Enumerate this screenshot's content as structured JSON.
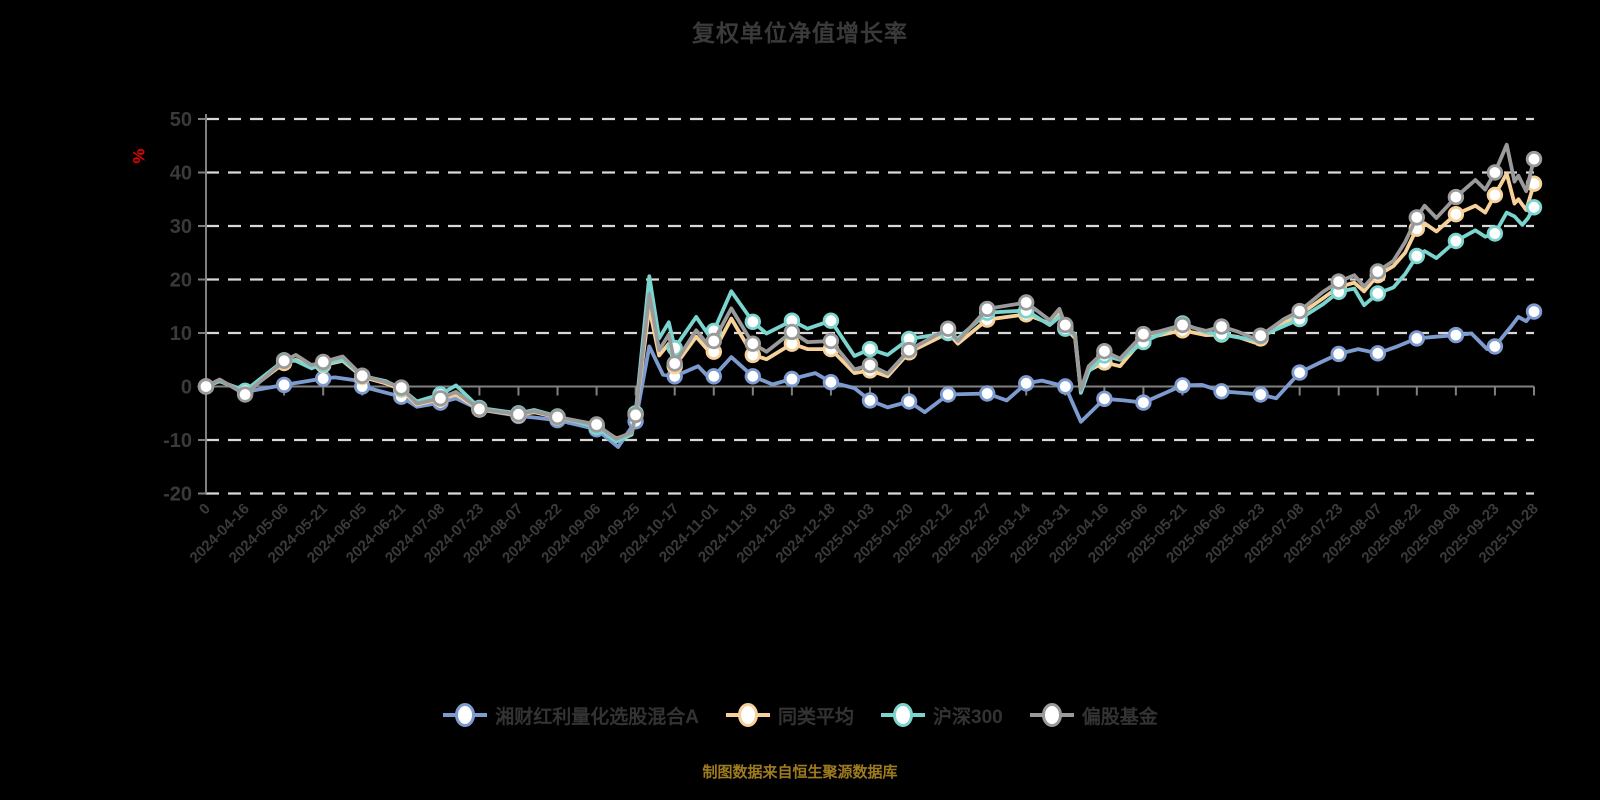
{
  "title": "复权单位净值增长率",
  "footer_note": "制图数据来自恒生聚源数据库",
  "y_axis_unit": "%",
  "colors": {
    "background": "#000000",
    "title_text": "#3a3a3a",
    "axis_label_text": "#3a3a3a",
    "legend_text": "#333333",
    "footer_text": "#9e7b1e",
    "unit_label": "#e60000",
    "gridline": "#d8d8d8",
    "axis_line": "#808080",
    "marker_fill": "#ffffff"
  },
  "legend": {
    "items": [
      {
        "label": "湘财红利量化选股混合A",
        "color": "#7e9bd0"
      },
      {
        "label": "同类平均",
        "color": "#f6d29a"
      },
      {
        "label": "沪深300",
        "color": "#7bd4ce"
      },
      {
        "label": "偏股基金",
        "color": "#9a9a9a"
      }
    ]
  },
  "chart_data": {
    "type": "line",
    "title": "复权单位净值增长率",
    "ylabel": "%",
    "ylim": [
      -20,
      50
    ],
    "y_ticks": [
      50,
      40,
      30,
      20,
      10,
      0,
      -10,
      -20
    ],
    "grid": "horizontal-dashed",
    "legend_position": "bottom",
    "x_tick_labels": [
      "0",
      "2024-04-16",
      "2024-05-06",
      "2024-05-21",
      "2024-06-05",
      "2024-06-21",
      "2024-07-08",
      "2024-07-23",
      "2024-08-07",
      "2024-08-22",
      "2024-09-06",
      "2024-09-25",
      "2024-10-17",
      "2024-11-01",
      "2024-11-18",
      "2024-12-03",
      "2024-12-18",
      "2025-01-03",
      "2025-01-20",
      "2025-02-12",
      "2025-02-27",
      "2025-03-14",
      "2025-03-31",
      "2025-04-16",
      "2025-05-06",
      "2025-05-21",
      "2025-06-06",
      "2025-06-23",
      "2025-07-08",
      "2025-07-23",
      "2025-08-07",
      "2025-08-22",
      "2025-09-08",
      "2025-09-23",
      "2025-10-28"
    ],
    "series": [
      {
        "name": "湘财红利量化选股混合A",
        "color": "#7e9bd0",
        "marker_values": [
          0,
          -1.0,
          0.3,
          1.5,
          0.0,
          -1.9,
          -3.0,
          -4.3,
          -5.5,
          -6.3,
          -8.0,
          -6.5,
          1.9,
          1.9,
          1.9,
          1.4,
          0.8,
          -2.6,
          -2.8,
          -1.5,
          -1.3,
          0.6,
          0.0,
          -2.3,
          -3.0,
          0.2,
          -0.9,
          -1.5,
          2.6,
          6.1,
          6.2,
          9.0,
          9.6,
          7.5,
          14.0
        ],
        "extra_points": [
          [
            0.35,
            1.0
          ],
          [
            3.3,
            1.7
          ],
          [
            3.8,
            1.2
          ],
          [
            5.4,
            -3.8
          ],
          [
            6.4,
            -2.2
          ],
          [
            8.4,
            -5.8
          ],
          [
            10.55,
            -11.3
          ],
          [
            11.35,
            7.5
          ],
          [
            11.7,
            2.2
          ],
          [
            12.6,
            3.8
          ],
          [
            12.9,
            1.5
          ],
          [
            13.45,
            5.5
          ],
          [
            14.5,
            0.4
          ],
          [
            15.6,
            2.5
          ],
          [
            16.6,
            -0.3
          ],
          [
            17.45,
            -3.9
          ],
          [
            18.4,
            -4.8
          ],
          [
            20.5,
            -2.6
          ],
          [
            21.4,
            1.1
          ],
          [
            22.4,
            -6.6
          ],
          [
            23.5,
            -2.6
          ],
          [
            25.5,
            0.3
          ],
          [
            26.5,
            -1.2
          ],
          [
            27.4,
            -2.2
          ],
          [
            28.5,
            4.4
          ],
          [
            29.5,
            7.0
          ],
          [
            30.5,
            7.5
          ],
          [
            31.5,
            9.3
          ],
          [
            32.4,
            9.9
          ],
          [
            32.8,
            7.0
          ],
          [
            33.4,
            11.1
          ],
          [
            33.6,
            13.0
          ],
          [
            33.8,
            12.2
          ]
        ]
      },
      {
        "name": "同类平均",
        "color": "#f6d29a",
        "marker_values": [
          0,
          -1.2,
          4.4,
          4.0,
          1.8,
          -0.6,
          -2.4,
          -4.3,
          -5.3,
          -5.8,
          -7.3,
          -5.2,
          3.8,
          6.5,
          5.9,
          8.0,
          7.0,
          3.0,
          6.4,
          10.0,
          12.5,
          13.5,
          11.0,
          4.5,
          9.0,
          10.5,
          9.7,
          9.0,
          13.4,
          18.6,
          20.8,
          29.5,
          32.2,
          35.8,
          37.9
        ],
        "extra_points": [
          [
            0.35,
            1.1
          ],
          [
            2.3,
            5.0
          ],
          [
            2.7,
            3.6
          ],
          [
            3.5,
            4.8
          ],
          [
            4.6,
            0.6
          ],
          [
            5.4,
            -3.4
          ],
          [
            6.4,
            -1.5
          ],
          [
            8.4,
            -4.8
          ],
          [
            10.5,
            -9.7
          ],
          [
            10.9,
            -8.8
          ],
          [
            11.35,
            14.7
          ],
          [
            11.6,
            5.8
          ],
          [
            11.85,
            8.0
          ],
          [
            12.55,
            9.3
          ],
          [
            12.85,
            6.8
          ],
          [
            13.45,
            12.7
          ],
          [
            14.35,
            5.1
          ],
          [
            15.4,
            7.0
          ],
          [
            16.6,
            2.5
          ],
          [
            17.45,
            1.9
          ],
          [
            19.25,
            8.0
          ],
          [
            21.6,
            11.8
          ],
          [
            21.85,
            13.5
          ],
          [
            22.25,
            9.0
          ],
          [
            22.4,
            -1.0
          ],
          [
            22.6,
            3.0
          ],
          [
            23.4,
            3.8
          ],
          [
            24.35,
            9.5
          ],
          [
            25.6,
            9.6
          ],
          [
            26.4,
            9.3
          ],
          [
            26.85,
            8.2
          ],
          [
            27.6,
            11.9
          ],
          [
            28.6,
            16.5
          ],
          [
            29.4,
            19.4
          ],
          [
            29.65,
            17.8
          ],
          [
            30.4,
            22.5
          ],
          [
            30.7,
            25.0
          ],
          [
            31.2,
            30.5
          ],
          [
            31.5,
            29.0
          ],
          [
            32.5,
            33.8
          ],
          [
            32.75,
            32.5
          ],
          [
            33.3,
            39.8
          ],
          [
            33.5,
            34.2
          ],
          [
            33.6,
            35.0
          ],
          [
            33.8,
            33.0
          ]
        ]
      },
      {
        "name": "沪深300",
        "color": "#7bd4ce",
        "marker_values": [
          0,
          -0.8,
          4.9,
          4.2,
          2.0,
          -0.4,
          -1.5,
          -4.0,
          -5.0,
          -5.6,
          -7.6,
          -5.0,
          7.2,
          10.4,
          12.1,
          12.3,
          12.3,
          7.0,
          8.9,
          10.0,
          13.8,
          14.2,
          10.8,
          5.8,
          8.3,
          11.8,
          9.8,
          9.4,
          12.6,
          17.7,
          17.4,
          24.4,
          27.2,
          28.6,
          33.5
        ],
        "extra_points": [
          [
            0.35,
            1.0
          ],
          [
            2.3,
            4.8
          ],
          [
            2.7,
            3.4
          ],
          [
            3.5,
            5.0
          ],
          [
            4.6,
            1.0
          ],
          [
            5.4,
            -2.8
          ],
          [
            6.4,
            0.2
          ],
          [
            8.4,
            -4.4
          ],
          [
            10.5,
            -10.3
          ],
          [
            10.9,
            -9.0
          ],
          [
            11.35,
            20.6
          ],
          [
            11.6,
            9.0
          ],
          [
            11.85,
            12.0
          ],
          [
            12.55,
            13.0
          ],
          [
            12.85,
            9.8
          ],
          [
            13.45,
            17.8
          ],
          [
            14.35,
            9.9
          ],
          [
            15.4,
            10.8
          ],
          [
            16.6,
            5.7
          ],
          [
            17.45,
            5.9
          ],
          [
            19.25,
            9.0
          ],
          [
            21.6,
            11.5
          ],
          [
            21.85,
            13.0
          ],
          [
            22.25,
            9.8
          ],
          [
            22.4,
            -1.2
          ],
          [
            22.6,
            2.8
          ],
          [
            23.4,
            5.0
          ],
          [
            25.6,
            10.1
          ],
          [
            26.4,
            9.2
          ],
          [
            26.85,
            8.7
          ],
          [
            27.6,
            11.3
          ],
          [
            28.6,
            15.4
          ],
          [
            29.4,
            18.3
          ],
          [
            29.65,
            15.2
          ],
          [
            30.4,
            18.5
          ],
          [
            30.7,
            21.0
          ],
          [
            31.2,
            25.3
          ],
          [
            31.5,
            24.0
          ],
          [
            32.5,
            29.2
          ],
          [
            32.75,
            28.0
          ],
          [
            33.3,
            32.5
          ],
          [
            33.5,
            31.8
          ],
          [
            33.7,
            30.2
          ],
          [
            33.85,
            31.5
          ]
        ]
      },
      {
        "name": "偏股基金",
        "color": "#9a9a9a",
        "marker_values": [
          0,
          -1.5,
          4.8,
          4.6,
          2.0,
          -0.2,
          -2.2,
          -4.2,
          -5.2,
          -5.7,
          -7.1,
          -5.3,
          4.3,
          8.5,
          8.0,
          10.2,
          8.5,
          4.0,
          6.8,
          10.8,
          14.5,
          15.7,
          11.5,
          6.6,
          9.8,
          11.5,
          11.2,
          9.5,
          14.1,
          19.6,
          21.5,
          31.6,
          35.4,
          40.0,
          42.5
        ],
        "extra_points": [
          [
            0.35,
            1.3
          ],
          [
            2.3,
            5.9
          ],
          [
            2.7,
            4.0
          ],
          [
            3.5,
            5.6
          ],
          [
            4.6,
            0.8
          ],
          [
            5.4,
            -3.2
          ],
          [
            6.4,
            -1.0
          ],
          [
            8.4,
            -4.6
          ],
          [
            10.5,
            -9.8
          ],
          [
            10.9,
            -8.6
          ],
          [
            11.35,
            17.2
          ],
          [
            11.6,
            6.8
          ],
          [
            11.85,
            9.7
          ],
          [
            12.55,
            10.5
          ],
          [
            12.85,
            7.8
          ],
          [
            13.45,
            14.6
          ],
          [
            14.35,
            6.5
          ],
          [
            15.4,
            8.3
          ],
          [
            16.6,
            3.2
          ],
          [
            17.45,
            2.4
          ],
          [
            19.25,
            8.5
          ],
          [
            21.6,
            12.4
          ],
          [
            21.85,
            14.5
          ],
          [
            22.25,
            9.5
          ],
          [
            22.4,
            -0.6
          ],
          [
            22.6,
            3.8
          ],
          [
            23.4,
            5.2
          ],
          [
            24.35,
            10.2
          ],
          [
            25.6,
            10.4
          ],
          [
            26.4,
            10.3
          ],
          [
            26.85,
            8.9
          ],
          [
            27.6,
            12.6
          ],
          [
            28.6,
            17.7
          ],
          [
            29.4,
            20.8
          ],
          [
            29.65,
            18.7
          ],
          [
            30.4,
            23.5
          ],
          [
            30.7,
            27.0
          ],
          [
            31.2,
            33.8
          ],
          [
            31.5,
            31.5
          ],
          [
            32.5,
            38.6
          ],
          [
            32.75,
            36.8
          ],
          [
            33.3,
            45.2
          ],
          [
            33.5,
            38.3
          ],
          [
            33.6,
            39.4
          ],
          [
            33.8,
            36.5
          ]
        ]
      }
    ]
  }
}
